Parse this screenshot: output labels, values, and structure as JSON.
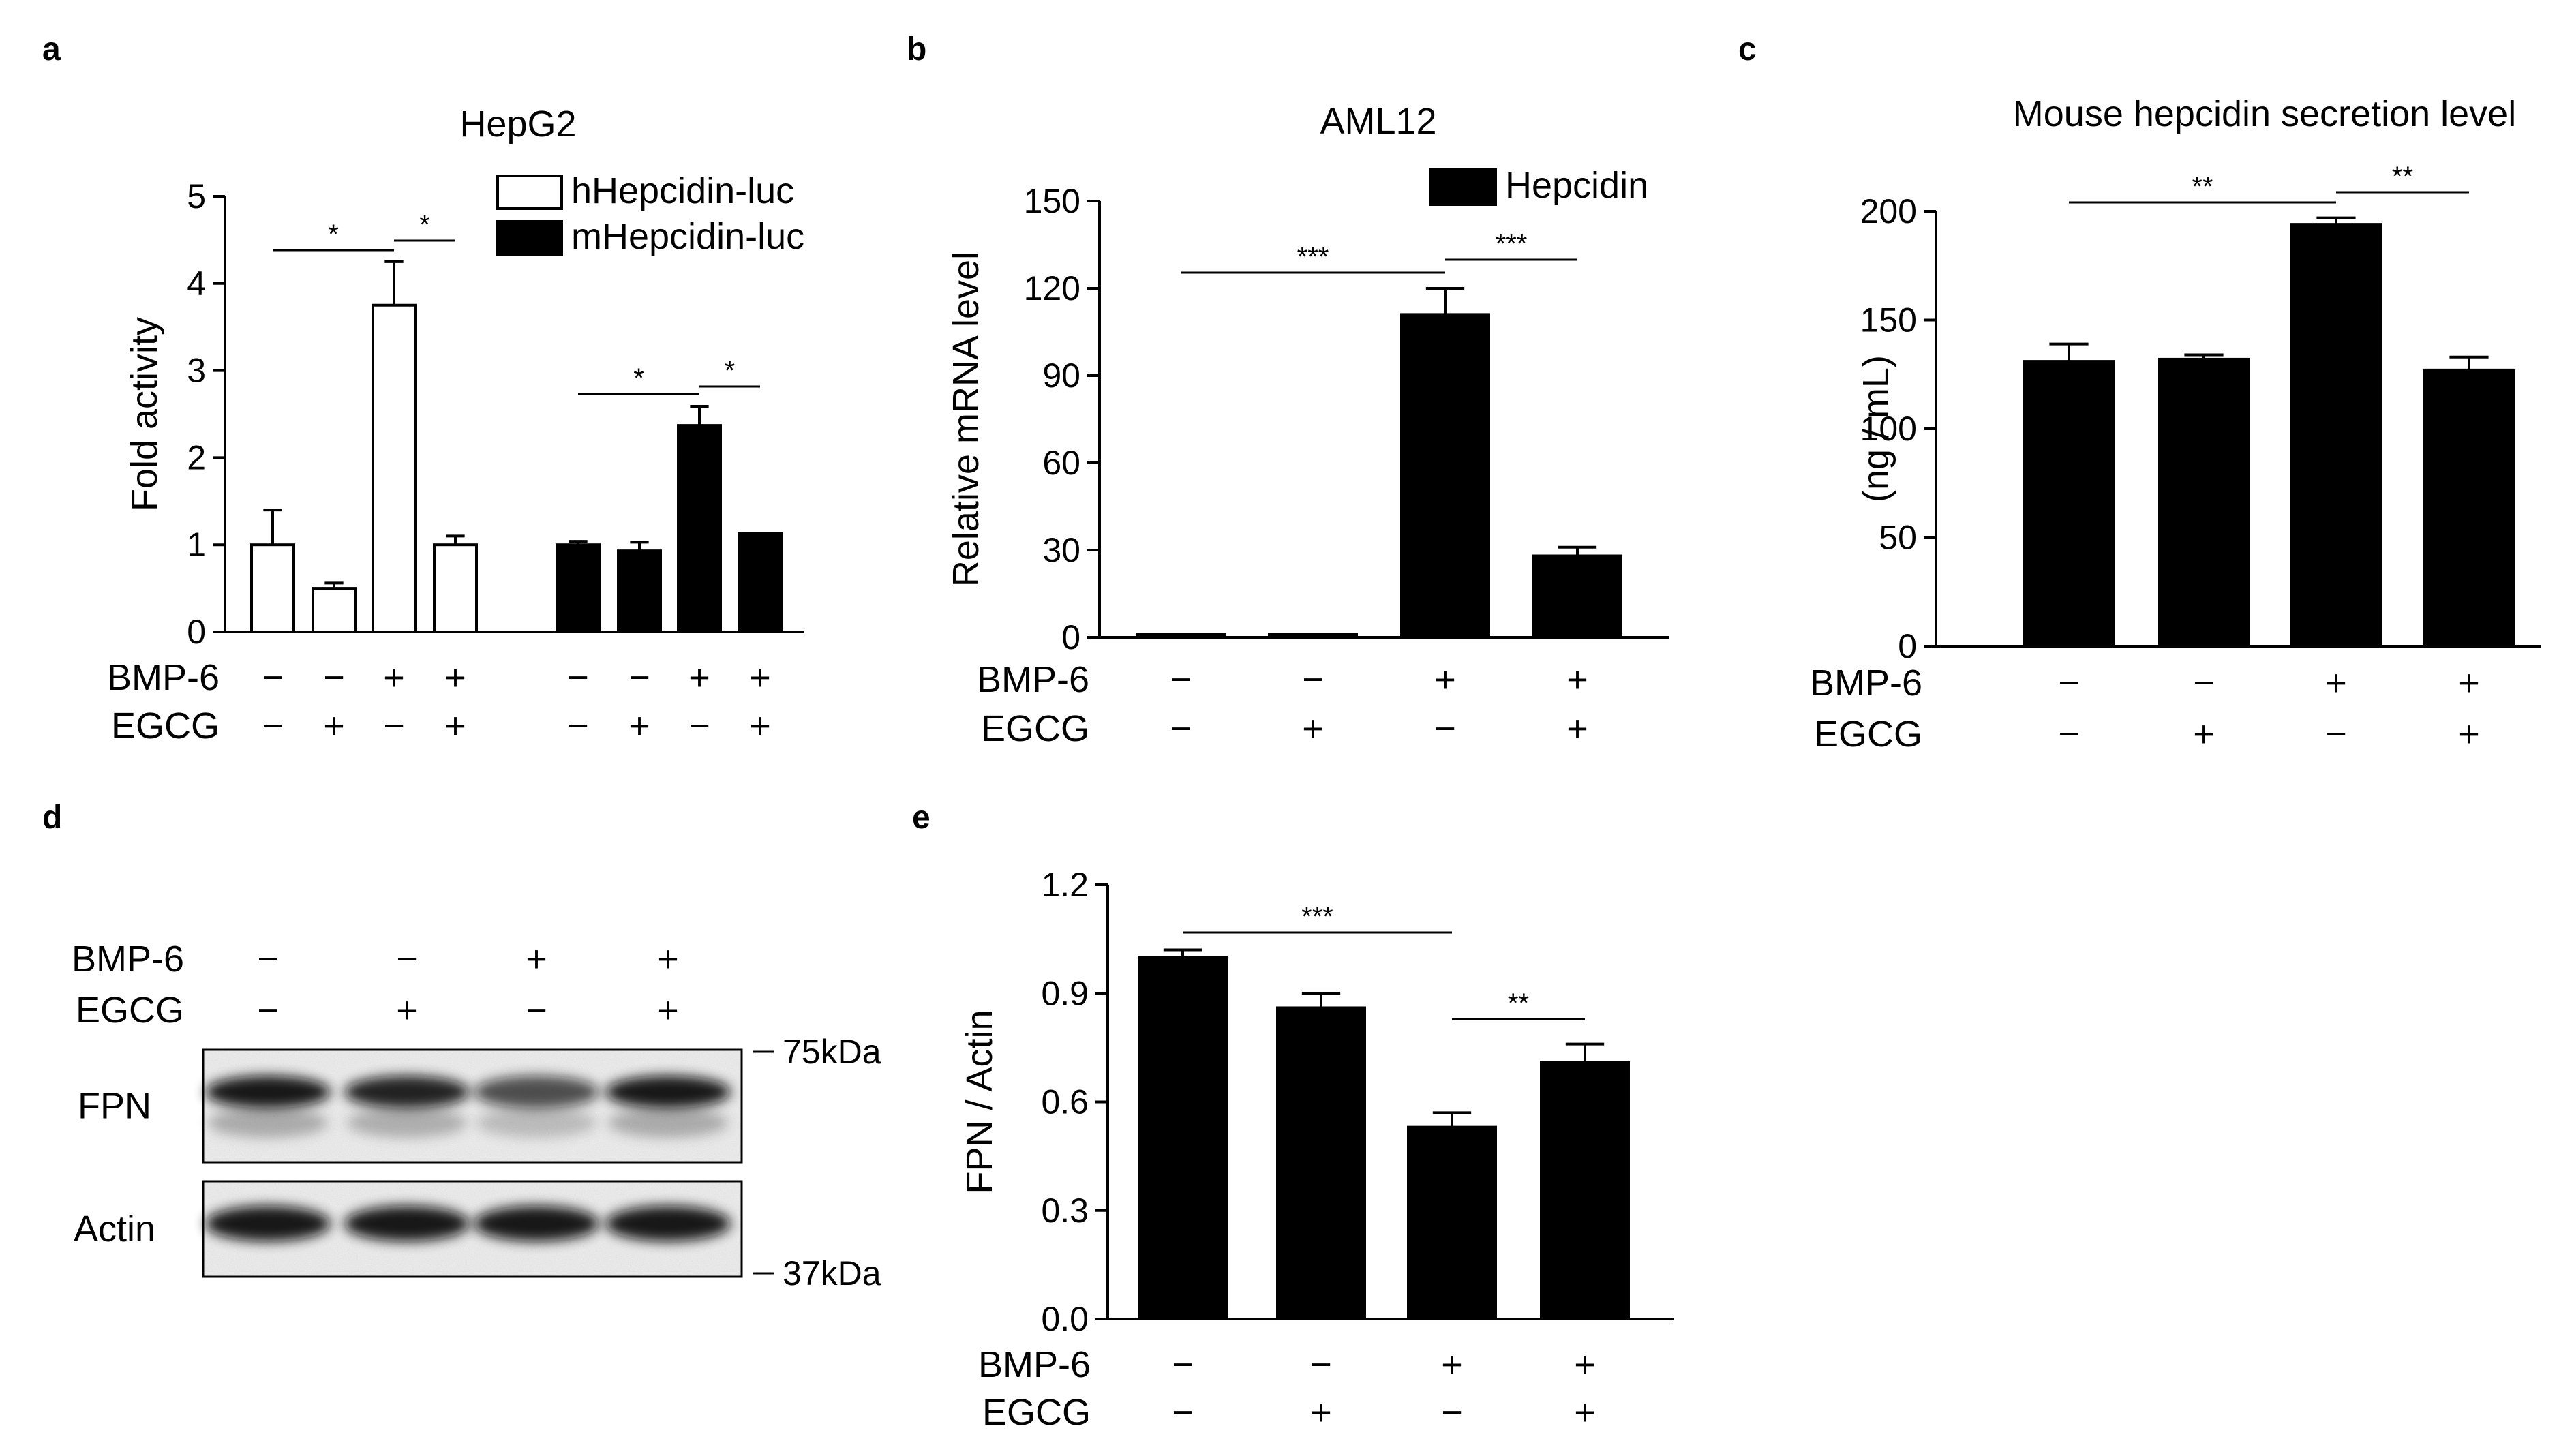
{
  "chart_data": [
    {
      "panel": "a",
      "type": "bar",
      "title": "HepG2",
      "ylabel": "Fold activity",
      "ylim": [
        0,
        5
      ],
      "yticks": [
        "0",
        "1",
        "2",
        "3",
        "4",
        "5"
      ],
      "legend_position": "top-right",
      "grid": false,
      "series": [
        {
          "name": "hHepcidin-luc",
          "fill": "white",
          "values": [
            1.0,
            0.5,
            3.75,
            1.0
          ],
          "errors": [
            0.4,
            0.06,
            0.5,
            0.1
          ]
        },
        {
          "name": "mHepcidin-luc",
          "fill": "black",
          "values": [
            1.0,
            0.93,
            2.37,
            1.13
          ],
          "errors": [
            0.04,
            0.1,
            0.22,
            0.0
          ]
        }
      ],
      "conditions": {
        "BMP-6": [
          "−",
          "−",
          "+",
          "+"
        ],
        "EGCG": [
          "−",
          "+",
          "−",
          "+"
        ]
      },
      "significance": [
        {
          "series": 0,
          "from": 0,
          "to": 2,
          "label": "*"
        },
        {
          "series": 0,
          "from": 2,
          "to": 3,
          "label": "*"
        },
        {
          "series": 1,
          "from": 0,
          "to": 2,
          "label": "*"
        },
        {
          "series": 1,
          "from": 2,
          "to": 3,
          "label": "*"
        }
      ]
    },
    {
      "panel": "b",
      "type": "bar",
      "title": "AML12",
      "ylabel": "Relative mRNA level",
      "ylim": [
        0,
        150
      ],
      "yticks": [
        "0",
        "30",
        "60",
        "90",
        "120",
        "150"
      ],
      "legend_position": "top-right",
      "grid": false,
      "series": [
        {
          "name": "Hepcidin",
          "fill": "black",
          "values": [
            1,
            1,
            111,
            28
          ],
          "errors": [
            0,
            0,
            9,
            3
          ]
        }
      ],
      "conditions": {
        "BMP-6": [
          "−",
          "−",
          "+",
          "+"
        ],
        "EGCG": [
          "−",
          "+",
          "−",
          "+"
        ]
      },
      "significance": [
        {
          "from": 0,
          "to": 2,
          "label": "***"
        },
        {
          "from": 2,
          "to": 3,
          "label": "***"
        }
      ]
    },
    {
      "panel": "c",
      "type": "bar",
      "title": "Mouse hepcidin secretion level",
      "ylabel": "(ng / mL)",
      "ylim": [
        0,
        200
      ],
      "yticks": [
        "0",
        "50",
        "100",
        "150",
        "200"
      ],
      "grid": false,
      "series": [
        {
          "fill": "black",
          "values": [
            131,
            132,
            194,
            127
          ],
          "errors": [
            8,
            2,
            3,
            6
          ]
        }
      ],
      "conditions": {
        "BMP-6": [
          "−",
          "−",
          "+",
          "+"
        ],
        "EGCG": [
          "−",
          "+",
          "−",
          "+"
        ]
      },
      "significance": [
        {
          "from": 0,
          "to": 2,
          "label": "**"
        },
        {
          "from": 2,
          "to": 3,
          "label": "**"
        }
      ]
    },
    {
      "panel": "e",
      "type": "bar",
      "ylabel": "FPN / Actin",
      "ylim": [
        0,
        1.2
      ],
      "yticks": [
        "0.0",
        "0.3",
        "0.6",
        "0.9",
        "1.2"
      ],
      "grid": false,
      "series": [
        {
          "fill": "black",
          "values": [
            1.0,
            0.86,
            0.53,
            0.71
          ],
          "errors": [
            0.02,
            0.04,
            0.04,
            0.05
          ]
        }
      ],
      "conditions": {
        "BMP-6": [
          "−",
          "−",
          "+",
          "+"
        ],
        "EGCG": [
          "−",
          "+",
          "−",
          "+"
        ]
      },
      "significance": [
        {
          "from": 0,
          "to": 2,
          "label": "***"
        },
        {
          "from": 2,
          "to": 3,
          "label": "**"
        }
      ]
    }
  ],
  "panel_labels": {
    "a": "a",
    "b": "b",
    "c": "c",
    "d": "d",
    "e": "e"
  },
  "blot": {
    "panel": "d",
    "conditions": {
      "BMP-6": [
        "−",
        "−",
        "+",
        "+"
      ],
      "EGCG": [
        "−",
        "+",
        "−",
        "+"
      ]
    },
    "rows": [
      {
        "name": "FPN",
        "marker": "75kDa",
        "band_intensity": [
          0.95,
          0.9,
          0.7,
          0.95
        ]
      },
      {
        "name": "Actin",
        "marker": "37kDa",
        "band_intensity": [
          0.95,
          0.95,
          0.95,
          0.95
        ]
      }
    ]
  }
}
